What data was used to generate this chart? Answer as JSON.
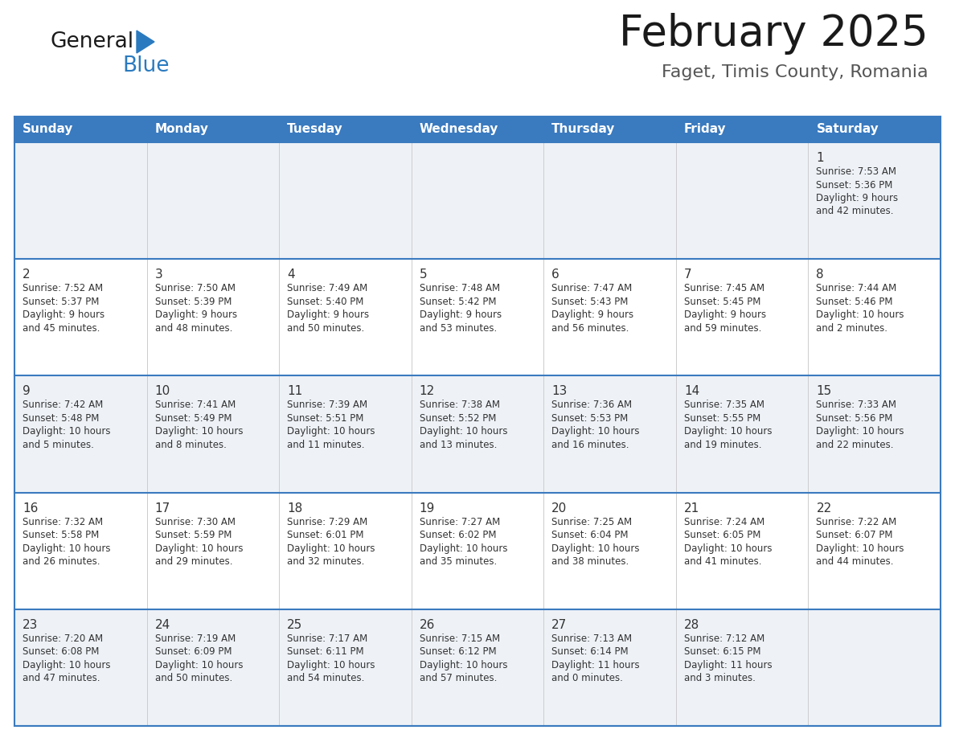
{
  "title": "February 2025",
  "subtitle": "Faget, Timis County, Romania",
  "header_bg": "#3a7abf",
  "header_text_color": "#ffffff",
  "cell_bg_light": "#eef2f7",
  "cell_bg_white": "#ffffff",
  "day_num_color": "#333333",
  "info_text_color": "#333333",
  "border_color": "#3a7abf",
  "days_of_week": [
    "Sunday",
    "Monday",
    "Tuesday",
    "Wednesday",
    "Thursday",
    "Friday",
    "Saturday"
  ],
  "weeks": [
    [
      {
        "day": "",
        "info": ""
      },
      {
        "day": "",
        "info": ""
      },
      {
        "day": "",
        "info": ""
      },
      {
        "day": "",
        "info": ""
      },
      {
        "day": "",
        "info": ""
      },
      {
        "day": "",
        "info": ""
      },
      {
        "day": "1",
        "info": "Sunrise: 7:53 AM\nSunset: 5:36 PM\nDaylight: 9 hours\nand 42 minutes."
      }
    ],
    [
      {
        "day": "2",
        "info": "Sunrise: 7:52 AM\nSunset: 5:37 PM\nDaylight: 9 hours\nand 45 minutes."
      },
      {
        "day": "3",
        "info": "Sunrise: 7:50 AM\nSunset: 5:39 PM\nDaylight: 9 hours\nand 48 minutes."
      },
      {
        "day": "4",
        "info": "Sunrise: 7:49 AM\nSunset: 5:40 PM\nDaylight: 9 hours\nand 50 minutes."
      },
      {
        "day": "5",
        "info": "Sunrise: 7:48 AM\nSunset: 5:42 PM\nDaylight: 9 hours\nand 53 minutes."
      },
      {
        "day": "6",
        "info": "Sunrise: 7:47 AM\nSunset: 5:43 PM\nDaylight: 9 hours\nand 56 minutes."
      },
      {
        "day": "7",
        "info": "Sunrise: 7:45 AM\nSunset: 5:45 PM\nDaylight: 9 hours\nand 59 minutes."
      },
      {
        "day": "8",
        "info": "Sunrise: 7:44 AM\nSunset: 5:46 PM\nDaylight: 10 hours\nand 2 minutes."
      }
    ],
    [
      {
        "day": "9",
        "info": "Sunrise: 7:42 AM\nSunset: 5:48 PM\nDaylight: 10 hours\nand 5 minutes."
      },
      {
        "day": "10",
        "info": "Sunrise: 7:41 AM\nSunset: 5:49 PM\nDaylight: 10 hours\nand 8 minutes."
      },
      {
        "day": "11",
        "info": "Sunrise: 7:39 AM\nSunset: 5:51 PM\nDaylight: 10 hours\nand 11 minutes."
      },
      {
        "day": "12",
        "info": "Sunrise: 7:38 AM\nSunset: 5:52 PM\nDaylight: 10 hours\nand 13 minutes."
      },
      {
        "day": "13",
        "info": "Sunrise: 7:36 AM\nSunset: 5:53 PM\nDaylight: 10 hours\nand 16 minutes."
      },
      {
        "day": "14",
        "info": "Sunrise: 7:35 AM\nSunset: 5:55 PM\nDaylight: 10 hours\nand 19 minutes."
      },
      {
        "day": "15",
        "info": "Sunrise: 7:33 AM\nSunset: 5:56 PM\nDaylight: 10 hours\nand 22 minutes."
      }
    ],
    [
      {
        "day": "16",
        "info": "Sunrise: 7:32 AM\nSunset: 5:58 PM\nDaylight: 10 hours\nand 26 minutes."
      },
      {
        "day": "17",
        "info": "Sunrise: 7:30 AM\nSunset: 5:59 PM\nDaylight: 10 hours\nand 29 minutes."
      },
      {
        "day": "18",
        "info": "Sunrise: 7:29 AM\nSunset: 6:01 PM\nDaylight: 10 hours\nand 32 minutes."
      },
      {
        "day": "19",
        "info": "Sunrise: 7:27 AM\nSunset: 6:02 PM\nDaylight: 10 hours\nand 35 minutes."
      },
      {
        "day": "20",
        "info": "Sunrise: 7:25 AM\nSunset: 6:04 PM\nDaylight: 10 hours\nand 38 minutes."
      },
      {
        "day": "21",
        "info": "Sunrise: 7:24 AM\nSunset: 6:05 PM\nDaylight: 10 hours\nand 41 minutes."
      },
      {
        "day": "22",
        "info": "Sunrise: 7:22 AM\nSunset: 6:07 PM\nDaylight: 10 hours\nand 44 minutes."
      }
    ],
    [
      {
        "day": "23",
        "info": "Sunrise: 7:20 AM\nSunset: 6:08 PM\nDaylight: 10 hours\nand 47 minutes."
      },
      {
        "day": "24",
        "info": "Sunrise: 7:19 AM\nSunset: 6:09 PM\nDaylight: 10 hours\nand 50 minutes."
      },
      {
        "day": "25",
        "info": "Sunrise: 7:17 AM\nSunset: 6:11 PM\nDaylight: 10 hours\nand 54 minutes."
      },
      {
        "day": "26",
        "info": "Sunrise: 7:15 AM\nSunset: 6:12 PM\nDaylight: 10 hours\nand 57 minutes."
      },
      {
        "day": "27",
        "info": "Sunrise: 7:13 AM\nSunset: 6:14 PM\nDaylight: 11 hours\nand 0 minutes."
      },
      {
        "day": "28",
        "info": "Sunrise: 7:12 AM\nSunset: 6:15 PM\nDaylight: 11 hours\nand 3 minutes."
      },
      {
        "day": "",
        "info": ""
      }
    ]
  ]
}
